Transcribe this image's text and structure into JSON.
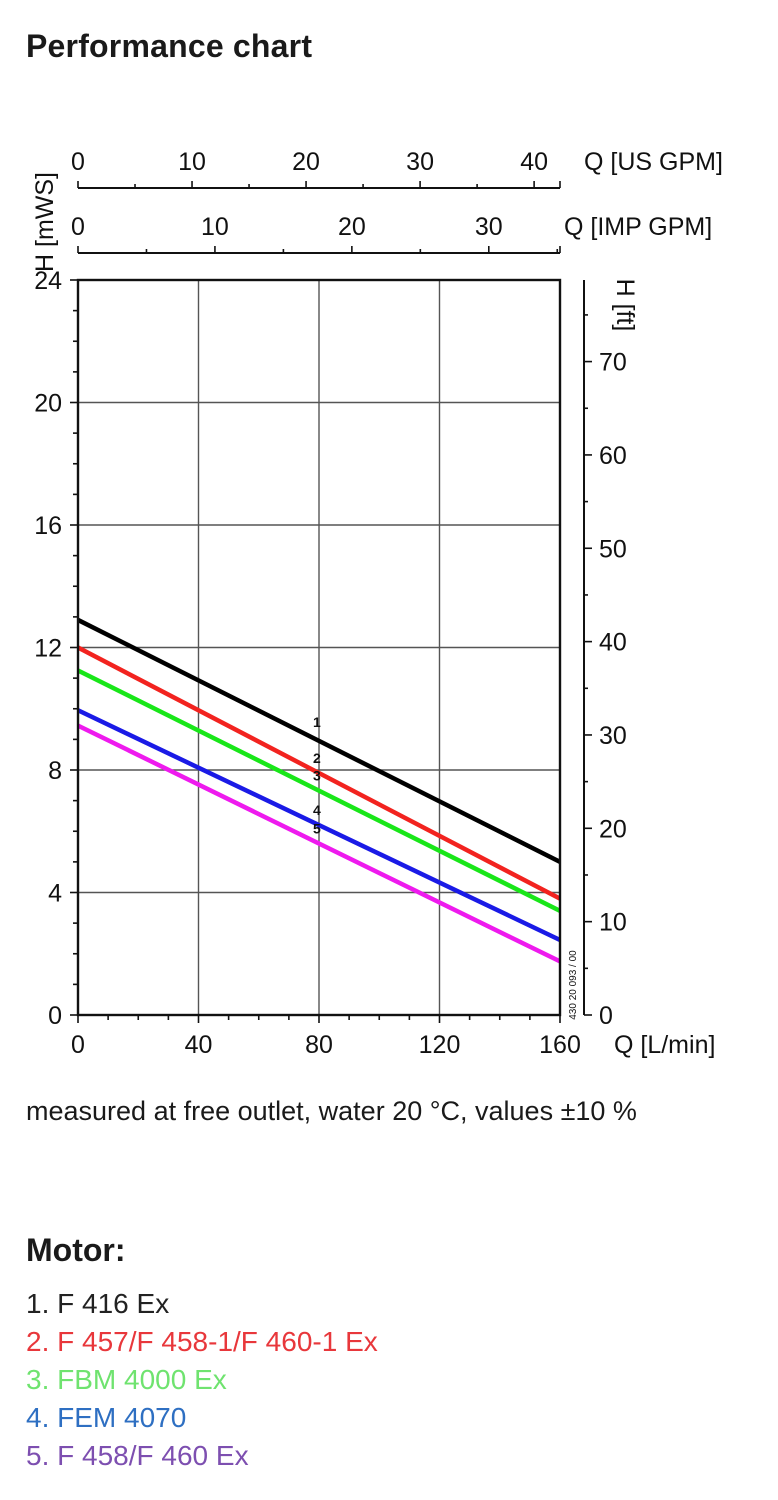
{
  "title": "Performance chart",
  "note": "measured at free outlet, water 20 °C, values ±10 %",
  "motor_heading": "Motor:",
  "motors": [
    {
      "num": "1.",
      "name": "F 416 Ex",
      "color": "#222222"
    },
    {
      "num": "2.",
      "name": "F 457/F 458-1/F 460-1 Ex",
      "color": "#e8373b"
    },
    {
      "num": "3.",
      "name": "FBM 4000 Ex",
      "color": "#6fe36f"
    },
    {
      "num": "4.",
      "name": "FEM 4070",
      "color": "#2e6fc2"
    },
    {
      "num": "5.",
      "name": "F 458/F 460 Ex",
      "color": "#7d4fb0"
    }
  ],
  "chart_data": {
    "type": "line",
    "xlabel": "Q [L/min]",
    "ylabel": "H [mWS]",
    "xlim": [
      0,
      160
    ],
    "ylim": [
      0,
      24
    ],
    "x_ticks": [
      0,
      40,
      80,
      120,
      160
    ],
    "y_ticks": [
      0,
      4,
      8,
      12,
      16,
      20,
      24
    ],
    "grid": true,
    "top_axes": [
      {
        "label": "Q [US GPM]",
        "max": 42.27,
        "ticks": [
          0,
          10,
          20,
          30,
          40
        ]
      },
      {
        "label": "Q [IMP GPM]",
        "max": 35.2,
        "ticks": [
          0,
          10,
          20,
          30
        ]
      }
    ],
    "right_axis": {
      "label": "H [ft]",
      "max": 78.74,
      "ticks": [
        0,
        10,
        20,
        30,
        40,
        50,
        60,
        70
      ]
    },
    "code": "430 20 093 / 00",
    "series": [
      {
        "name": "1",
        "color": "#000000",
        "x": [
          0,
          160
        ],
        "y": [
          12.9,
          5.0
        ]
      },
      {
        "name": "2",
        "color": "#f2231f",
        "x": [
          0,
          160
        ],
        "y": [
          12.0,
          3.8
        ]
      },
      {
        "name": "3",
        "color": "#19e619",
        "x": [
          0,
          160
        ],
        "y": [
          11.25,
          3.4
        ]
      },
      {
        "name": "4",
        "color": "#1a1ae6",
        "x": [
          0,
          160
        ],
        "y": [
          9.95,
          2.45
        ]
      },
      {
        "name": "5",
        "color": "#ee1aee",
        "x": [
          0,
          160
        ],
        "y": [
          9.45,
          1.75
        ]
      }
    ],
    "curve_label_x": 80
  }
}
